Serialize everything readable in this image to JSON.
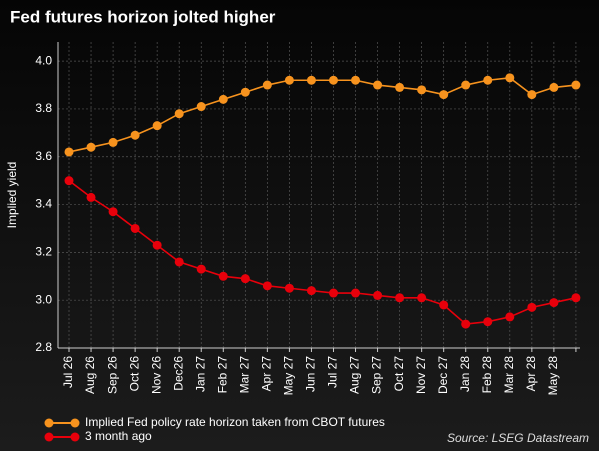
{
  "chart_data": {
    "type": "line",
    "title": "Fed futures horizon jolted higher",
    "y_label": "Implied yield",
    "source": "Source: LSEG Datastream",
    "grid": true,
    "categories": [
      "Jul 26",
      "Aug 26",
      "Sep 26",
      "Oct 26",
      "Nov 26",
      "Dec26",
      "Jan 27",
      "Feb 27",
      "Mar 27",
      "Apr 27",
      "May 27",
      "Jun 27",
      "Jul 27",
      "Aug 27",
      "Sep 27",
      "Oct 27",
      "Nov 27",
      "Dec 27",
      "Jan 28",
      "Feb 28",
      "Mar 28",
      "Apr 28",
      "May 28",
      null
    ],
    "series": [
      {
        "name": "Implied Fed policy rate horizon taken from CBOT futures",
        "color": "#f7931e",
        "values": [
          3.62,
          3.64,
          3.66,
          3.69,
          3.73,
          3.78,
          3.81,
          3.84,
          3.87,
          3.9,
          3.92,
          3.92,
          3.92,
          3.92,
          3.9,
          3.89,
          3.88,
          3.86,
          3.9,
          3.92,
          3.93,
          3.86,
          3.89,
          3.9
        ]
      },
      {
        "name": "3 month ago",
        "color": "#e8000b",
        "values": [
          3.5,
          3.43,
          3.37,
          3.3,
          3.23,
          3.16,
          3.13,
          3.1,
          3.09,
          3.06,
          3.05,
          3.04,
          3.03,
          3.03,
          3.02,
          3.01,
          3.01,
          2.98,
          2.9,
          2.91,
          2.93,
          2.97,
          2.99,
          3.01
        ]
      }
    ],
    "ylim": [
      2.8,
      4.08
    ],
    "yticks": [
      {
        "value": 2.8,
        "label": "2.8"
      },
      {
        "value": 3.0,
        "label": "3.0"
      },
      {
        "value": 3.2,
        "label": "3.2"
      },
      {
        "value": 3.4,
        "label": "3.4"
      },
      {
        "value": 3.6,
        "label": "3.6"
      },
      {
        "value": 3.8,
        "label": "3.8"
      },
      {
        "value": 4.0,
        "label": "4.0"
      }
    ]
  }
}
